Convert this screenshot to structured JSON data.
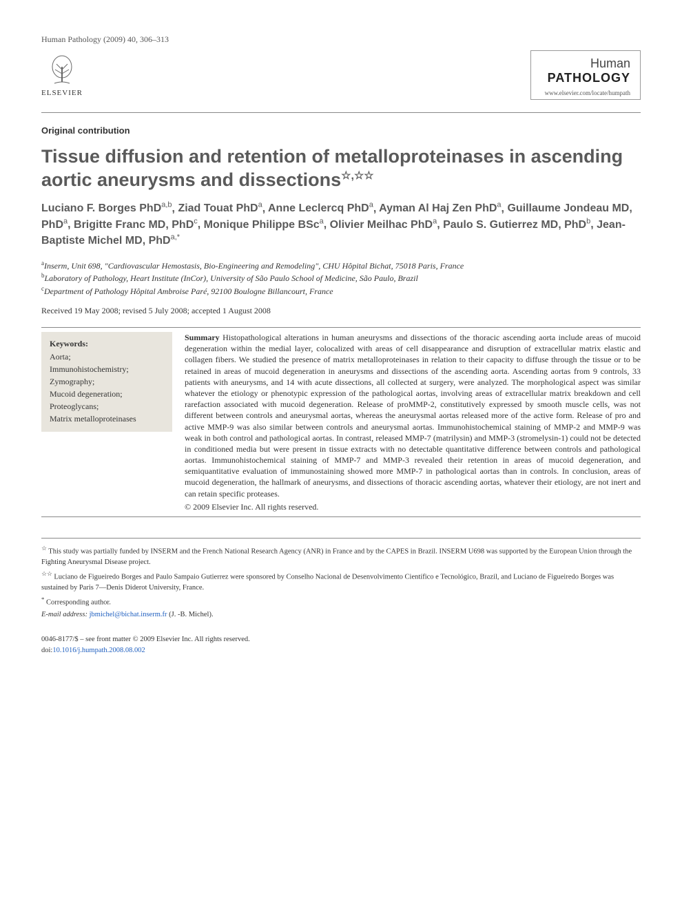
{
  "header": {
    "citation": "Human Pathology (2009) 40, 306–313",
    "elsevier_label": "ELSEVIER",
    "journal_name_1": "Human",
    "journal_name_2": "PATHOLOGY",
    "journal_url": "www.elsevier.com/locate/humpath"
  },
  "section_label": "Original contribution",
  "title": "Tissue diffusion and retention of metalloproteinases in ascending aortic aneurysms and dissections",
  "title_marks": "☆,☆☆",
  "authors_html": "Luciano F. Borges PhD|a,b|, Ziad Touat PhD|a|, Anne Leclercq PhD|a|, Ayman Al Haj Zen PhD|a|, Guillaume Jondeau MD, PhD|a|, Brigitte Franc MD, PhD|c|, Monique Philippe BSc|a|, Olivier Meilhac PhD|a|, Paulo S. Gutierrez MD, PhD|b|, Jean-Baptiste Michel MD, PhD|a,*|",
  "authors": [
    {
      "name": "Luciano F. Borges PhD",
      "aff": "a,b"
    },
    {
      "name": "Ziad Touat PhD",
      "aff": "a"
    },
    {
      "name": "Anne Leclercq PhD",
      "aff": "a"
    },
    {
      "name": "Ayman Al Haj Zen PhD",
      "aff": "a"
    },
    {
      "name": "Guillaume Jondeau MD, PhD",
      "aff": "a"
    },
    {
      "name": "Brigitte Franc MD, PhD",
      "aff": "c"
    },
    {
      "name": "Monique Philippe BSc",
      "aff": "a"
    },
    {
      "name": "Olivier Meilhac PhD",
      "aff": "a"
    },
    {
      "name": "Paulo S. Gutierrez MD, PhD",
      "aff": "b"
    },
    {
      "name": "Jean-Baptiste Michel MD, PhD",
      "aff": "a,*"
    }
  ],
  "affiliations": [
    {
      "key": "a",
      "text": "Inserm, Unit 698, \"Cardiovascular Hemostasis, Bio-Engineering and Remodeling\", CHU Hôpital Bichat, 75018 Paris, France"
    },
    {
      "key": "b",
      "text": "Laboratory of Pathology, Heart Institute (InCor), University of São Paulo School of Medicine, São Paulo, Brazil"
    },
    {
      "key": "c",
      "text": "Department of Pathology Hôpital Ambroise Paré, 92100 Boulogne Billancourt, France"
    }
  ],
  "dates": "Received 19 May 2008; revised 5 July 2008; accepted 1 August 2008",
  "keywords": {
    "title": "Keywords:",
    "items": [
      "Aorta;",
      "Immunohistochemistry;",
      "Zymography;",
      "Mucoid degeneration;",
      "Proteoglycans;",
      "Matrix metalloproteinases"
    ]
  },
  "summary_label": "Summary",
  "summary": "Histopathological alterations in human aneurysms and dissections of the thoracic ascending aorta include areas of mucoid degeneration within the medial layer, colocalized with areas of cell disappearance and disruption of extracellular matrix elastic and collagen fibers. We studied the presence of matrix metalloproteinases in relation to their capacity to diffuse through the tissue or to be retained in areas of mucoid degeneration in aneurysms and dissections of the ascending aorta. Ascending aortas from 9 controls, 33 patients with aneurysms, and 14 with acute dissections, all collected at surgery, were analyzed. The morphological aspect was similar whatever the etiology or phenotypic expression of the pathological aortas, involving areas of extracellular matrix breakdown and cell rarefaction associated with mucoid degeneration. Release of proMMP-2, constitutively expressed by smooth muscle cells, was not different between controls and aneurysmal aortas, whereas the aneurysmal aortas released more of the active form. Release of pro and active MMP-9 was also similar between controls and aneurysmal aortas. Immunohistochemical staining of MMP-2 and MMP-9 was weak in both control and pathological aortas. In contrast, released MMP-7 (matrilysin) and MMP-3 (stromelysin-1) could not be detected in conditioned media but were present in tissue extracts with no detectable quantitative difference between controls and pathological aortas. Immunohistochemical staining of MMP-7 and MMP-3 revealed their retention in areas of mucoid degeneration, and semiquantitative evaluation of immunostaining showed more MMP-7 in pathological aortas than in controls. In conclusion, areas of mucoid degeneration, the hallmark of aneurysms, and dissections of thoracic ascending aortas, whatever their etiology, are not inert and can retain specific proteases.",
  "copyright": "© 2009 Elsevier Inc. All rights reserved.",
  "footnotes": {
    "fn1_mark": "☆",
    "fn1": "This study was partially funded by INSERM and the French National Research Agency (ANR) in France and by the CAPES in Brazil. INSERM U698 was supported by the European Union through the Fighting Aneurysmal Disease project.",
    "fn2_mark": "☆☆",
    "fn2": "Luciano de Figueiredo Borges and Paulo Sampaio Gutierrez were sponsored by Conselho Nacional de Desenvolvimento Científico e Tecnológico, Brazil, and Luciano de Figueiredo Borges was sustained by Paris 7—Denis Diderot University, France.",
    "corr_mark": "*",
    "corr": "Corresponding author.",
    "email_label": "E-mail address:",
    "email": "jbmichel@bichat.inserm.fr",
    "email_who": "(J. -B. Michel)."
  },
  "footer": {
    "line1": "0046-8177/$ – see front matter © 2009 Elsevier Inc. All rights reserved.",
    "doi_label": "doi:",
    "doi": "10.1016/j.humpath.2008.08.002"
  },
  "colors": {
    "title_gray": "#5a5a5a",
    "keywords_bg": "#e8e5dd",
    "link_blue": "#2060c0",
    "text": "#333333",
    "rule": "#888888"
  },
  "typography": {
    "body_font": "Georgia/Times",
    "heading_font": "Arial/Helvetica",
    "title_size_pt": 20,
    "authors_size_pt": 12,
    "body_size_pt": 9,
    "footnote_size_pt": 8
  }
}
